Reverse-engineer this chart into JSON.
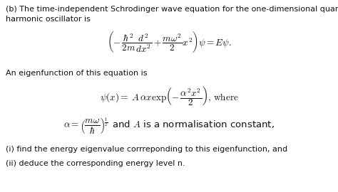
{
  "background_color": "#ffffff",
  "text_color": "#111111",
  "figsize": [
    4.74,
    2.7
  ],
  "dpi": 100,
  "line1": "(b) The time-independent Schrodinger wave equation for the one-dimensional quantum",
  "line2": "harmonic oscillator is",
  "eq1_latex": "$\\left(-\\,\\dfrac{\\hbar^2}{2m}\\dfrac{d^2}{dx^2}+\\dfrac{m\\omega^2}{2}x^2\\right)\\psi = E\\psi.$",
  "line3": "An eigenfunction of this equation is",
  "eq2_latex": "$\\psi(x) =\\; A\\,\\alpha x \\exp\\!\\left(-\\,\\dfrac{\\alpha^2 x^2}{2}\\right),\\,\\text{where}$",
  "eq3_latex": "$\\alpha = \\left(\\dfrac{m\\omega}{\\hbar}\\right)^{\\!\\frac{1}{2}}\\!\\;$ and $A$ is a normalisation constant,",
  "line4": "(i) find the energy eigenvalue corrreponding to this eigenfunction, and",
  "line5": "(ii) deduce the corresponding energy level n."
}
